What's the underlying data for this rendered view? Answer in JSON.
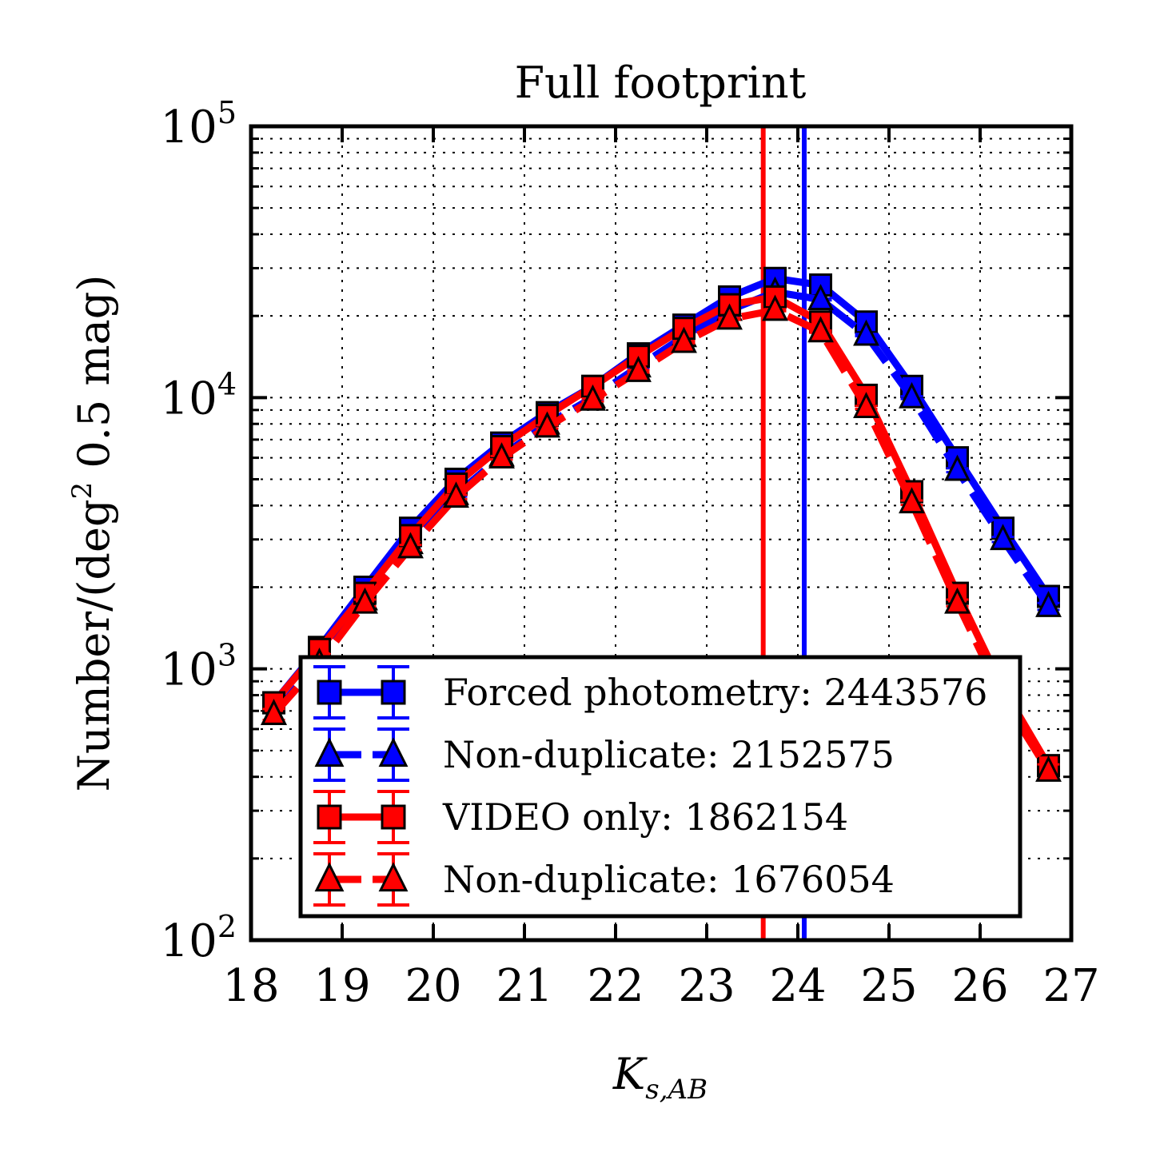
{
  "chart_data": {
    "type": "line",
    "title": "Full footprint",
    "xlabel_main": "K",
    "xlabel_sub": "s,AB",
    "ylabel": "Number/(deg",
    "ylabel_sup": "2",
    "ylabel_rest": " 0.5 mag)",
    "xlim": [
      18,
      27
    ],
    "ylim": [
      100,
      100000
    ],
    "yscale": "log",
    "grid": true,
    "legend_position": "lower center",
    "x_ticks": [
      "18",
      "19",
      "20",
      "21",
      "22",
      "23",
      "24",
      "25",
      "26",
      "27"
    ],
    "y_ticks": [
      {
        "value": 100,
        "base": "10",
        "exp": "2"
      },
      {
        "value": 1000,
        "base": "10",
        "exp": "3"
      },
      {
        "value": 10000,
        "base": "10",
        "exp": "4"
      },
      {
        "value": 100000,
        "base": "10",
        "exp": "5"
      }
    ],
    "x": [
      18.25,
      18.75,
      19.25,
      19.75,
      20.25,
      20.75,
      21.25,
      21.75,
      22.25,
      22.75,
      23.25,
      23.75,
      24.25,
      24.75,
      25.25,
      25.75,
      26.25,
      26.75
    ],
    "series": [
      {
        "name": "Forced photometry: 2443576",
        "color": "#0000ff",
        "marker": "square",
        "linestyle": "solid",
        "values": [
          750,
          1200,
          2000,
          3300,
          5000,
          6800,
          8800,
          11000,
          14500,
          18500,
          23500,
          27500,
          26000,
          19000,
          11000,
          6000,
          3300,
          1850
        ]
      },
      {
        "name": "Non-duplicate: 2152575",
        "color": "#0000ff",
        "marker": "triangle",
        "linestyle": "dashed",
        "values": [
          680,
          1080,
          1800,
          2900,
          4400,
          6100,
          8000,
          10000,
          13000,
          16800,
          21000,
          24500,
          23000,
          17000,
          10000,
          5400,
          3000,
          1700
        ]
      },
      {
        "name": "VIDEO only: 1862154",
        "color": "#ff0000",
        "marker": "square",
        "linestyle": "solid",
        "values": [
          750,
          1180,
          1900,
          3100,
          4800,
          6600,
          8600,
          11000,
          14200,
          18000,
          22000,
          23500,
          19000,
          10200,
          4500,
          1900,
          850,
          440
        ]
      },
      {
        "name": "Non-duplicate: 1676054",
        "color": "#ff0000",
        "marker": "triangle",
        "linestyle": "dashed",
        "values": [
          680,
          1050,
          1750,
          2800,
          4300,
          6000,
          7800,
          9800,
          12500,
          16000,
          19500,
          21000,
          17500,
          9200,
          4100,
          1750,
          780,
          420
        ]
      }
    ],
    "vlines": [
      {
        "x": 23.62,
        "color": "#ff0000"
      },
      {
        "x": 24.07,
        "color": "#0000ff"
      }
    ]
  }
}
